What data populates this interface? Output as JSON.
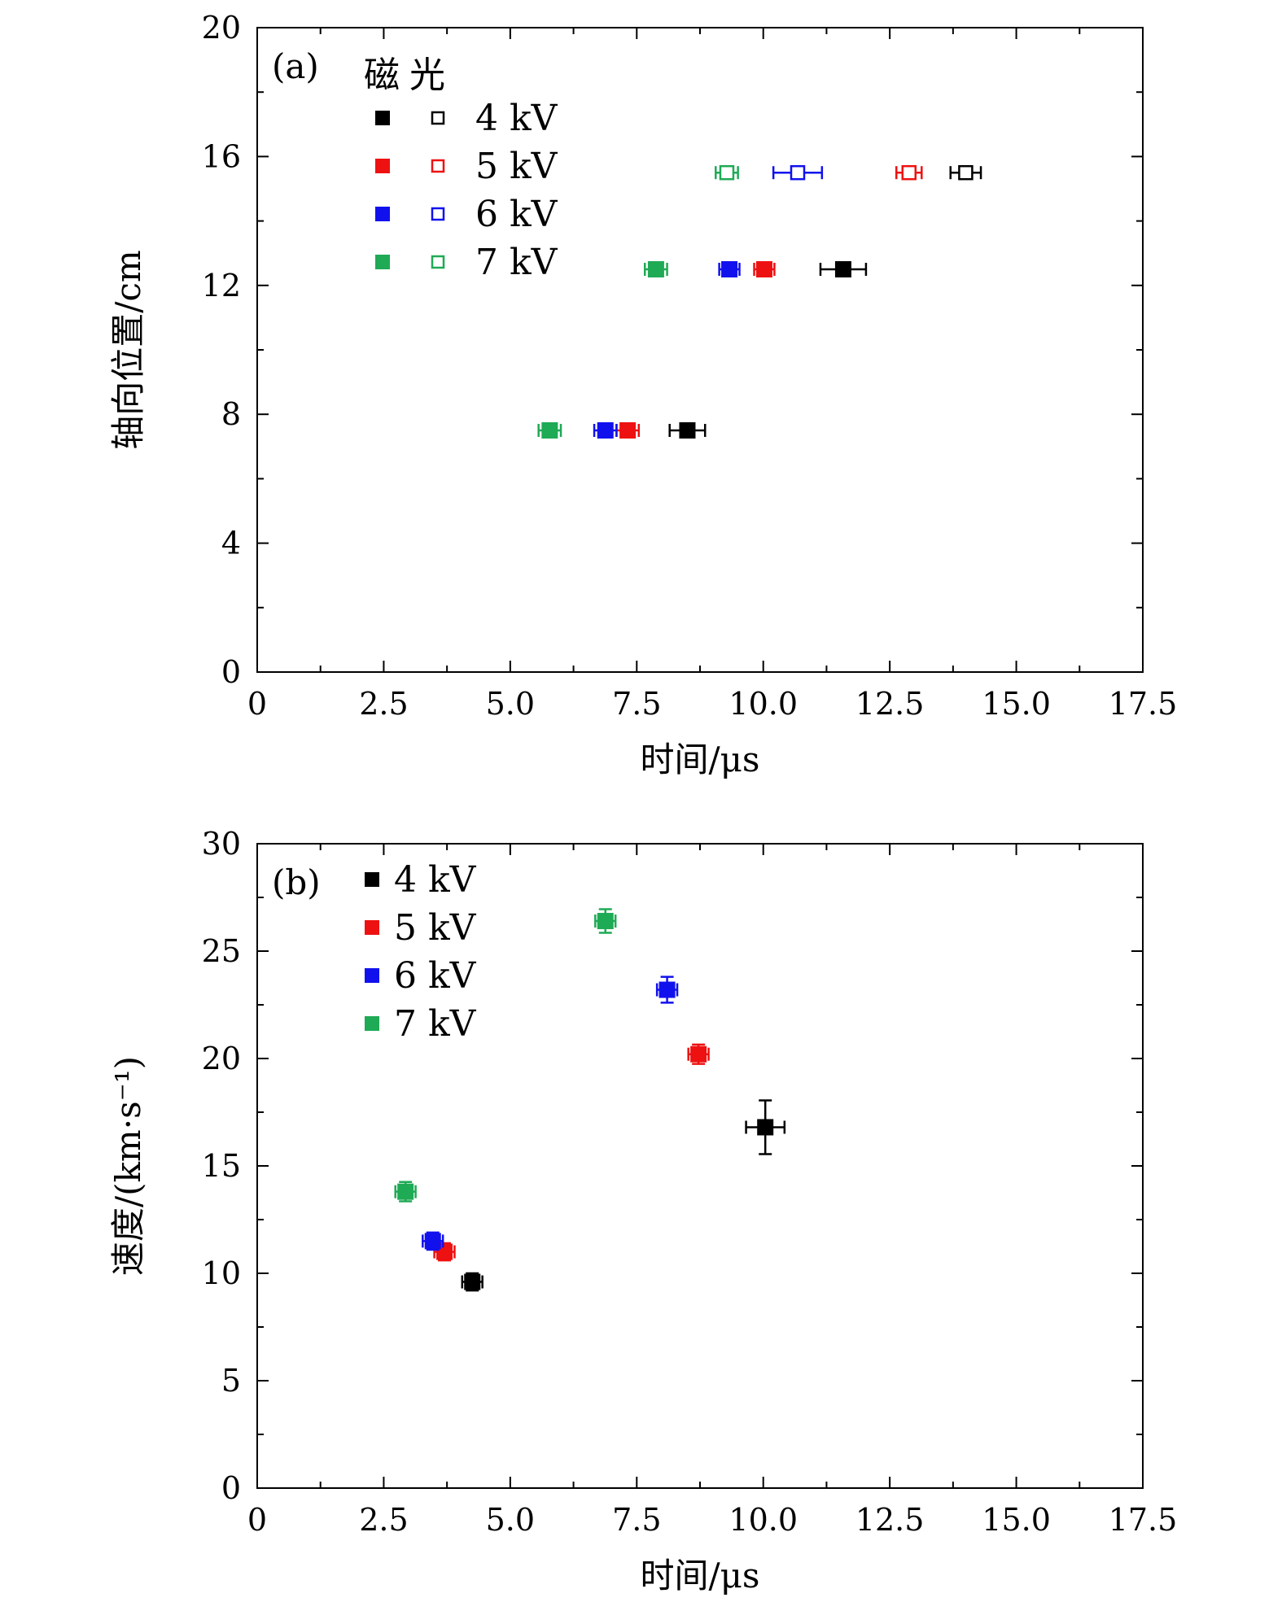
{
  "chart_data": [
    {
      "type": "scatter",
      "panel_label": "(a)",
      "xlabel": "时间/μs",
      "ylabel": "轴向位置/cm",
      "xlim": [
        0,
        17.5
      ],
      "ylim": [
        0,
        20
      ],
      "xticks": [
        "0",
        "2.5",
        "5.0",
        "7.5",
        "10.0",
        "12.5",
        "15.0",
        "17.5"
      ],
      "yticks": [
        "0",
        "4",
        "8",
        "12",
        "16",
        "20"
      ],
      "legend": {
        "header_filled": "磁",
        "header_open": "光",
        "entries": [
          "4 kV",
          "5 kV",
          "6 kV",
          "7 kV"
        ]
      },
      "series": [
        {
          "name": "4 kV 磁",
          "color": "#000000",
          "marker": "filled",
          "points": [
            {
              "x": 8.5,
              "y": 7.5,
              "xerr": 0.35
            },
            {
              "x": 11.58,
              "y": 12.5,
              "xerr": 0.45
            }
          ]
        },
        {
          "name": "5 kV 磁",
          "color": "#ee1111",
          "marker": "filled",
          "points": [
            {
              "x": 7.32,
              "y": 7.5,
              "xerr": 0.22
            },
            {
              "x": 10.02,
              "y": 12.5,
              "xerr": 0.2
            }
          ]
        },
        {
          "name": "6 kV 磁",
          "color": "#1111ee",
          "marker": "filled",
          "points": [
            {
              "x": 6.88,
              "y": 7.5,
              "xerr": 0.22
            },
            {
              "x": 9.33,
              "y": 12.5,
              "xerr": 0.2
            }
          ]
        },
        {
          "name": "7 kV 磁",
          "color": "#1faa55",
          "marker": "filled",
          "points": [
            {
              "x": 5.78,
              "y": 7.5,
              "xerr": 0.22
            },
            {
              "x": 7.88,
              "y": 12.5,
              "xerr": 0.22
            }
          ]
        },
        {
          "name": "4 kV 光",
          "color": "#000000",
          "marker": "open",
          "points": [
            {
              "x": 14.0,
              "y": 15.5,
              "xerr": 0.3
            }
          ]
        },
        {
          "name": "5 kV 光",
          "color": "#ee1111",
          "marker": "open",
          "points": [
            {
              "x": 12.88,
              "y": 15.5,
              "xerr": 0.25
            }
          ]
        },
        {
          "name": "6 kV 光",
          "color": "#1111ee",
          "marker": "open",
          "points": [
            {
              "x": 10.68,
              "y": 15.5,
              "xerr": 0.48
            }
          ]
        },
        {
          "name": "7 kV 光",
          "color": "#1faa55",
          "marker": "open",
          "points": [
            {
              "x": 9.28,
              "y": 15.5,
              "xerr": 0.22
            }
          ]
        }
      ]
    },
    {
      "type": "scatter",
      "panel_label": "(b)",
      "xlabel": "时间/μs",
      "ylabel": "速度/(km·s⁻¹)",
      "xlim": [
        0,
        17.5
      ],
      "ylim": [
        0,
        30
      ],
      "xticks": [
        "0",
        "2.5",
        "5.0",
        "7.5",
        "10.0",
        "12.5",
        "15.0",
        "17.5"
      ],
      "yticks": [
        "0",
        "5",
        "10",
        "15",
        "20",
        "25",
        "30"
      ],
      "legend": {
        "entries": [
          "4 kV",
          "5 kV",
          "6 kV",
          "7 kV"
        ]
      },
      "series": [
        {
          "name": "4 kV",
          "color": "#000000",
          "marker": "filled",
          "points": [
            {
              "x": 4.25,
              "y": 9.6,
              "xerr": 0.2,
              "yerr": 0.4
            },
            {
              "x": 10.04,
              "y": 16.8,
              "xerr": 0.38,
              "yerr": 1.25
            }
          ]
        },
        {
          "name": "5 kV",
          "color": "#ee1111",
          "marker": "filled",
          "points": [
            {
              "x": 3.7,
              "y": 11.0,
              "xerr": 0.2,
              "yerr": 0.4
            },
            {
              "x": 8.72,
              "y": 20.2,
              "xerr": 0.2,
              "yerr": 0.45
            }
          ]
        },
        {
          "name": "6 kV",
          "color": "#1111ee",
          "marker": "filled",
          "points": [
            {
              "x": 3.47,
              "y": 11.5,
              "xerr": 0.2,
              "yerr": 0.4
            },
            {
              "x": 8.1,
              "y": 23.2,
              "xerr": 0.2,
              "yerr": 0.6
            }
          ]
        },
        {
          "name": "7 kV",
          "color": "#1faa55",
          "marker": "filled",
          "points": [
            {
              "x": 2.93,
              "y": 13.8,
              "xerr": 0.2,
              "yerr": 0.45
            },
            {
              "x": 6.88,
              "y": 26.4,
              "xerr": 0.2,
              "yerr": 0.55
            }
          ]
        }
      ]
    }
  ]
}
